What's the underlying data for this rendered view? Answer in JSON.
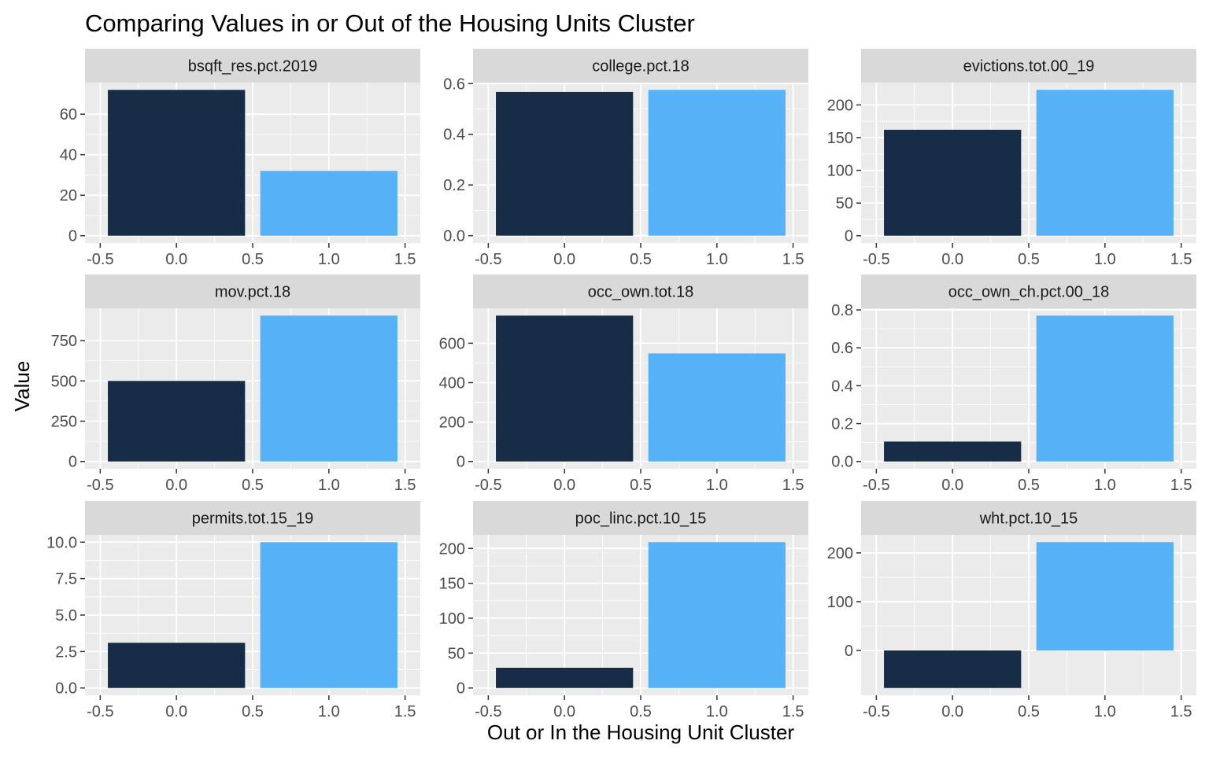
{
  "title": "Comparing Values in or Out of the Housing Units Cluster",
  "xlabel": "Out or In the Housing Unit Cluster",
  "ylabel": "Value",
  "colors": {
    "out": "#172C46",
    "in": "#56B1F7",
    "panel_bg": "#EBEBEB",
    "strip_bg": "#D9D9D9",
    "grid": "#FFFFFF",
    "axis_text": "#4D4D4D"
  },
  "chart_data": {
    "type": "bar",
    "facet_layout": "3x3",
    "xlim": [
      -0.5,
      1.5
    ],
    "x_ticks": [
      -0.5,
      0.0,
      0.5,
      1.0,
      1.5
    ],
    "x_tick_labels": [
      "-0.5",
      "0.0",
      "0.5",
      "1.0",
      "1.5"
    ],
    "bar_x": [
      0,
      1
    ],
    "grid": true,
    "legend": "none",
    "panels": [
      {
        "label": "bsqft_res.pct.2019",
        "values": [
          72,
          32
        ],
        "ylim": [
          -3.6,
          75.6
        ],
        "y_ticks": [
          0,
          20,
          40,
          60
        ],
        "y_tick_labels": [
          "0",
          "20",
          "40",
          "60"
        ]
      },
      {
        "label": "college.pct.18",
        "values": [
          0.567,
          0.575
        ],
        "ylim": [
          -0.029,
          0.604
        ],
        "y_ticks": [
          0,
          0.2,
          0.4,
          0.6
        ],
        "y_tick_labels": [
          "0.0",
          "0.2",
          "0.4",
          "0.6"
        ]
      },
      {
        "label": "evictions.tot.00_19",
        "values": [
          162,
          223
        ],
        "ylim": [
          -11.15,
          234.15
        ],
        "y_ticks": [
          0,
          50,
          100,
          150,
          200
        ],
        "y_tick_labels": [
          "0",
          "50",
          "100",
          "150",
          "200"
        ]
      },
      {
        "label": "mov.pct.18",
        "values": [
          500,
          905
        ],
        "ylim": [
          -45.25,
          950.25
        ],
        "y_ticks": [
          0,
          250,
          500,
          750
        ],
        "y_tick_labels": [
          "0",
          "250",
          "500",
          "750"
        ]
      },
      {
        "label": "occ_own.tot.18",
        "values": [
          740,
          548
        ],
        "ylim": [
          -37,
          777
        ],
        "y_ticks": [
          0,
          200,
          400,
          600
        ],
        "y_tick_labels": [
          "0",
          "200",
          "400",
          "600"
        ]
      },
      {
        "label": "occ_own_ch.pct.00_18",
        "values": [
          0.105,
          0.77
        ],
        "ylim": [
          -0.0385,
          0.8085
        ],
        "y_ticks": [
          0,
          0.2,
          0.4,
          0.6,
          0.8
        ],
        "y_tick_labels": [
          "0.0",
          "0.2",
          "0.4",
          "0.6",
          "0.8"
        ]
      },
      {
        "label": "permits.tot.15_19",
        "values": [
          3.1,
          10
        ],
        "ylim": [
          -0.5,
          10.5
        ],
        "y_ticks": [
          0,
          2.5,
          5,
          7.5,
          10
        ],
        "y_tick_labels": [
          "0.0",
          "2.5",
          "5.0",
          "7.5",
          "10.0"
        ]
      },
      {
        "label": "poc_linc.pct.10_15",
        "values": [
          29,
          209
        ],
        "ylim": [
          -10.45,
          219.45
        ],
        "y_ticks": [
          0,
          50,
          100,
          150,
          200
        ],
        "y_tick_labels": [
          "0",
          "50",
          "100",
          "150",
          "200"
        ]
      },
      {
        "label": "wht.pct.10_15",
        "values": [
          -77,
          222
        ],
        "ylim": [
          -91.95,
          236.95
        ],
        "y_ticks": [
          0,
          100,
          200
        ],
        "y_tick_labels": [
          "0",
          "100",
          "200"
        ]
      }
    ]
  }
}
